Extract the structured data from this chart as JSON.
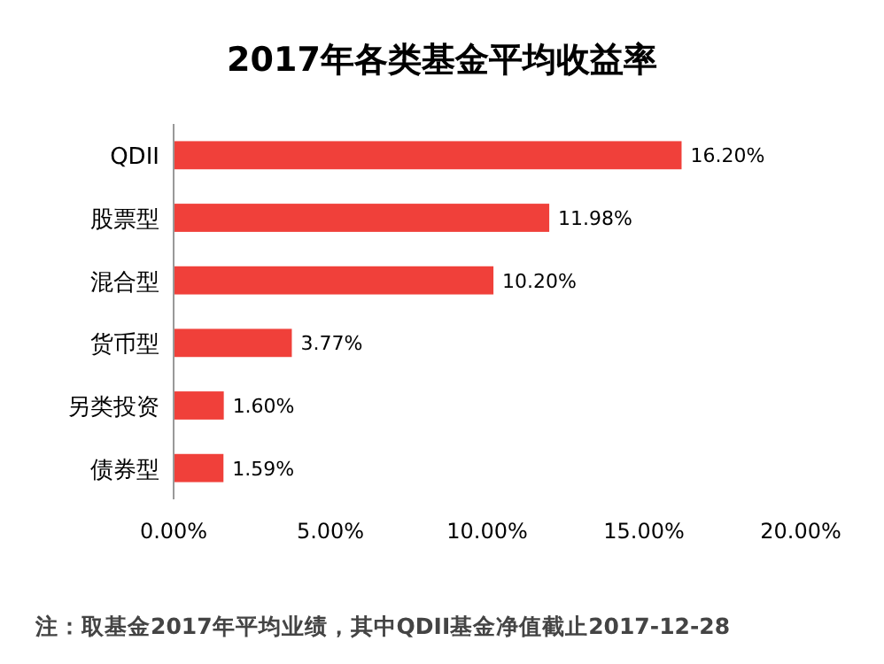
{
  "chart_data": {
    "type": "bar",
    "orientation": "horizontal",
    "title": "2017年各类基金平均收益率",
    "categories": [
      "QDII",
      "股票型",
      "混合型",
      "货币型",
      "另类投资",
      "债券型"
    ],
    "values": [
      16.2,
      11.98,
      10.2,
      3.77,
      1.6,
      1.59
    ],
    "value_labels": [
      "16.20%",
      "11.98%",
      "10.20%",
      "3.77%",
      "1.60%",
      "1.59%"
    ],
    "color": "#f0403a",
    "xlim": [
      0,
      20
    ],
    "xticks": [
      {
        "value": 0,
        "label": "0.00%"
      },
      {
        "value": 5,
        "label": "5.00%"
      },
      {
        "value": 10,
        "label": "10.00%"
      },
      {
        "value": 15,
        "label": "15.00%"
      },
      {
        "value": 20,
        "label": "20.00%"
      }
    ],
    "grid": false,
    "annotations": [
      "注：取基金2017年平均业绩，其中QDII基金净值截止2017-12-28"
    ]
  }
}
